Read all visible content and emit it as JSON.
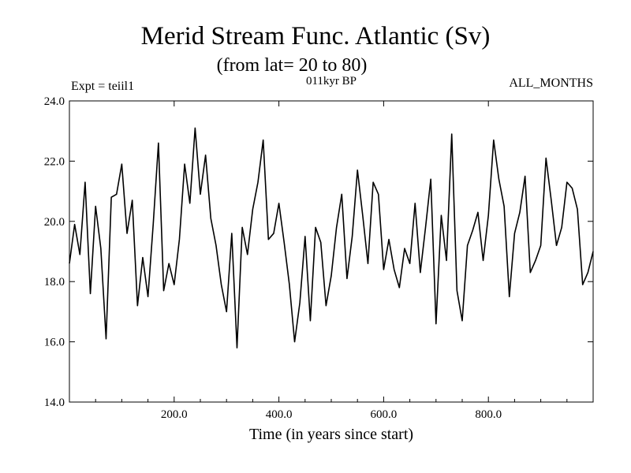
{
  "header": {
    "title": "Merid Stream Func. Atlantic (Sv)",
    "subtitle": "(from lat= 20 to 80)",
    "experiment": "Expt = teiil1",
    "period": "011kyr BP",
    "months": "ALL_MONTHS"
  },
  "chart_data": {
    "type": "line",
    "title": "Merid Stream Func. Atlantic (Sv)",
    "subtitle": "(from lat= 20 to 80)",
    "xlabel": "Time (in years since start)",
    "ylabel": "",
    "xlim": [
      0,
      1000
    ],
    "ylim": [
      14.0,
      24.0
    ],
    "xticks": [
      200,
      400,
      600,
      800
    ],
    "xtick_labels": [
      "200.0",
      "400.0",
      "600.0",
      "800.0"
    ],
    "yticks": [
      14,
      16,
      18,
      20,
      22,
      24
    ],
    "ytick_labels": [
      "14.0",
      "16.0",
      "18.0",
      "20.0",
      "22.0",
      "24.0"
    ],
    "grid": false,
    "line_color": "#000000",
    "series": [
      {
        "x": [
          0,
          10,
          20,
          30,
          40,
          50,
          60,
          70,
          80,
          90,
          100,
          110,
          120,
          130,
          140,
          150,
          160,
          170,
          180,
          190,
          200,
          210,
          220,
          230,
          240,
          250,
          260,
          270,
          280,
          290,
          300,
          310,
          320,
          330,
          340,
          350,
          360,
          370,
          380,
          390,
          400,
          410,
          420,
          430,
          440,
          450,
          460,
          470,
          480,
          490,
          500,
          510,
          520,
          530,
          540,
          550,
          560,
          570,
          580,
          590,
          600,
          610,
          620,
          630,
          640,
          650,
          660,
          670,
          680,
          690,
          700,
          710,
          720,
          730,
          740,
          750,
          760,
          770,
          780,
          790,
          800,
          810,
          820,
          830,
          840,
          850,
          860,
          870,
          880,
          890,
          900,
          910,
          920,
          930,
          940,
          950,
          960,
          970,
          980,
          990,
          1000
        ],
        "values": [
          18.6,
          19.9,
          18.9,
          21.3,
          17.6,
          20.5,
          19.1,
          16.1,
          20.8,
          20.9,
          21.9,
          19.6,
          20.7,
          17.2,
          18.8,
          17.5,
          19.9,
          22.6,
          17.7,
          18.6,
          17.9,
          19.4,
          21.9,
          20.6,
          23.1,
          20.9,
          22.2,
          20.1,
          19.2,
          17.9,
          17.0,
          19.6,
          15.8,
          19.8,
          18.9,
          20.4,
          21.3,
          22.7,
          19.4,
          19.6,
          20.6,
          19.3,
          17.9,
          16.0,
          17.3,
          19.5,
          16.7,
          19.8,
          19.3,
          17.2,
          18.2,
          19.8,
          20.9,
          18.1,
          19.5,
          21.7,
          20.2,
          18.6,
          21.3,
          20.9,
          18.4,
          19.4,
          18.4,
          17.8,
          19.1,
          18.6,
          20.6,
          18.3,
          19.8,
          21.4,
          16.6,
          20.2,
          18.7,
          22.9,
          17.7,
          16.7,
          19.2,
          19.7,
          20.3,
          18.7,
          20.2,
          22.7,
          21.4,
          20.5,
          17.5,
          19.6,
          20.3,
          21.5,
          18.3,
          18.7,
          19.2,
          22.1,
          20.7,
          19.2,
          19.8,
          21.3,
          21.1,
          20.4,
          17.9,
          18.3,
          19.0
        ]
      }
    ]
  }
}
